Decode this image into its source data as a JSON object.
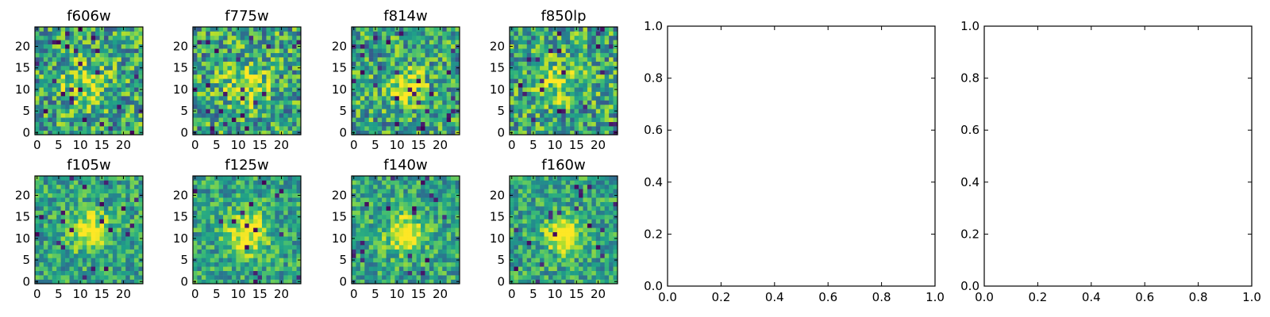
{
  "chart_data": [
    {
      "type": "heatmap",
      "title": "f606w",
      "xticks": [
        "0",
        "5",
        "10",
        "15",
        "20"
      ],
      "yticks": [
        "0",
        "5",
        "10",
        "15",
        "20"
      ],
      "xlim": [
        -0.5,
        24.5
      ],
      "ylim": [
        -0.5,
        24.5
      ],
      "grid": false,
      "colormap": "viridis",
      "blob": {
        "x": 11,
        "y": 11,
        "sigma": 3.5,
        "amplitude": 0.35
      },
      "noise": 0.42,
      "seed": 11
    },
    {
      "type": "heatmap",
      "title": "f775w",
      "xticks": [
        "0",
        "5",
        "10",
        "15",
        "20"
      ],
      "yticks": [
        "0",
        "5",
        "10",
        "15",
        "20"
      ],
      "xlim": [
        -0.5,
        24.5
      ],
      "ylim": [
        -0.5,
        24.5
      ],
      "grid": false,
      "colormap": "viridis",
      "blob": {
        "x": 12,
        "y": 11,
        "sigma": 3.5,
        "amplitude": 0.35
      },
      "noise": 0.42,
      "seed": 23
    },
    {
      "type": "heatmap",
      "title": "f814w",
      "xticks": [
        "0",
        "5",
        "10",
        "15",
        "20"
      ],
      "yticks": [
        "0",
        "5",
        "10",
        "15",
        "20"
      ],
      "xlim": [
        -0.5,
        24.5
      ],
      "ylim": [
        -0.5,
        24.5
      ],
      "grid": false,
      "colormap": "viridis",
      "blob": {
        "x": 12,
        "y": 11,
        "sigma": 3.0,
        "amplitude": 0.4
      },
      "noise": 0.4,
      "seed": 37
    },
    {
      "type": "heatmap",
      "title": "f850lp",
      "xticks": [
        "0",
        "5",
        "10",
        "15",
        "20"
      ],
      "yticks": [
        "0",
        "5",
        "10",
        "15",
        "20"
      ],
      "xlim": [
        -0.5,
        24.5
      ],
      "ylim": [
        -0.5,
        24.5
      ],
      "grid": false,
      "colormap": "viridis",
      "blob": {
        "x": 11,
        "y": 12,
        "sigma": 3.5,
        "amplitude": 0.3
      },
      "noise": 0.42,
      "seed": 41
    },
    {
      "type": "heatmap",
      "title": "f105w",
      "xticks": [
        "0",
        "5",
        "10",
        "15",
        "20"
      ],
      "yticks": [
        "0",
        "5",
        "10",
        "15",
        "20"
      ],
      "xlim": [
        -0.5,
        24.5
      ],
      "ylim": [
        -0.5,
        24.5
      ],
      "grid": false,
      "colormap": "viridis",
      "blob": {
        "x": 12,
        "y": 12,
        "sigma": 3.0,
        "amplitude": 0.5
      },
      "noise": 0.3,
      "seed": 53
    },
    {
      "type": "heatmap",
      "title": "f125w",
      "xticks": [
        "0",
        "5",
        "10",
        "15",
        "20"
      ],
      "yticks": [
        "0",
        "5",
        "10",
        "15",
        "20"
      ],
      "xlim": [
        -0.5,
        24.5
      ],
      "ylim": [
        -0.5,
        24.5
      ],
      "grid": false,
      "colormap": "viridis",
      "blob": {
        "x": 12,
        "y": 11,
        "sigma": 3.5,
        "amplitude": 0.45
      },
      "noise": 0.3,
      "seed": 67
    },
    {
      "type": "heatmap",
      "title": "f140w",
      "xticks": [
        "0",
        "5",
        "10",
        "15",
        "20"
      ],
      "yticks": [
        "0",
        "5",
        "10",
        "15",
        "20"
      ],
      "xlim": [
        -0.5,
        24.5
      ],
      "ylim": [
        -0.5,
        24.5
      ],
      "grid": false,
      "colormap": "viridis",
      "blob": {
        "x": 12,
        "y": 11,
        "sigma": 3.0,
        "amplitude": 0.5
      },
      "noise": 0.3,
      "seed": 79
    },
    {
      "type": "heatmap",
      "title": "f160w",
      "xticks": [
        "0",
        "5",
        "10",
        "15",
        "20"
      ],
      "yticks": [
        "0",
        "5",
        "10",
        "15",
        "20"
      ],
      "xlim": [
        -0.5,
        24.5
      ],
      "ylim": [
        -0.5,
        24.5
      ],
      "grid": false,
      "colormap": "viridis",
      "blob": {
        "x": 12,
        "y": 11,
        "sigma": 2.8,
        "amplitude": 0.6
      },
      "noise": 0.3,
      "seed": 97
    },
    {
      "type": "scatter",
      "title": "",
      "x": [],
      "y": [],
      "xlim": [
        0,
        1
      ],
      "ylim": [
        0,
        1
      ],
      "xticks": [
        "0.0",
        "0.2",
        "0.4",
        "0.6",
        "0.8",
        "1.0"
      ],
      "yticks": [
        "0.0",
        "0.2",
        "0.4",
        "0.6",
        "0.8",
        "1.0"
      ],
      "grid": false
    },
    {
      "type": "scatter",
      "title": "",
      "x": [],
      "y": [],
      "xlim": [
        0,
        1
      ],
      "ylim": [
        0,
        1
      ],
      "xticks": [
        "0.0",
        "0.2",
        "0.4",
        "0.6",
        "0.8",
        "1.0"
      ],
      "yticks": [
        "0.0",
        "0.2",
        "0.4",
        "0.6",
        "0.8",
        "1.0"
      ],
      "grid": false
    }
  ]
}
